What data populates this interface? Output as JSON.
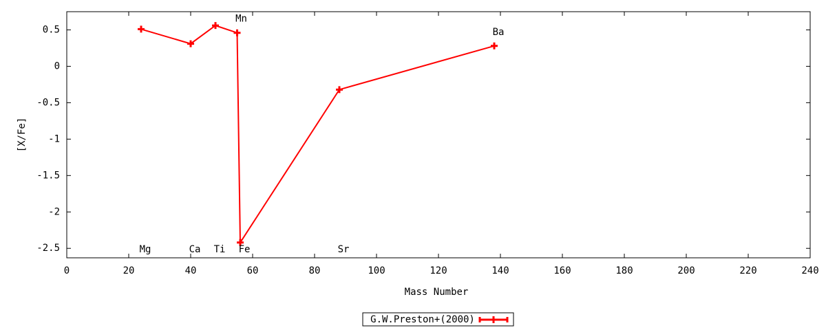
{
  "chart_data": {
    "type": "line",
    "xlabel": "Mass Number",
    "ylabel": "[X/Fe]",
    "x": [
      24,
      40,
      48,
      55,
      56,
      88,
      138
    ],
    "point_labels": [
      "Mg",
      "Ca",
      "Ti",
      "Mn",
      "Fe",
      "Sr",
      "Ba"
    ],
    "series": [
      {
        "name": "G.W.Preston+(2000)",
        "color": "#ff0000",
        "values": [
          0.51,
          0.31,
          0.56,
          0.46,
          -2.42,
          -0.32,
          0.28
        ]
      }
    ],
    "xlim": [
      0,
      240
    ],
    "xticks": [
      0,
      20,
      40,
      60,
      80,
      100,
      120,
      140,
      160,
      180,
      200,
      220,
      240
    ],
    "ylim": [
      -2.63,
      0.75
    ],
    "yticks": [
      0.5,
      0,
      -0.5,
      -1,
      -1.5,
      -2,
      -2.5
    ],
    "grid": false,
    "legend": "bottom"
  }
}
